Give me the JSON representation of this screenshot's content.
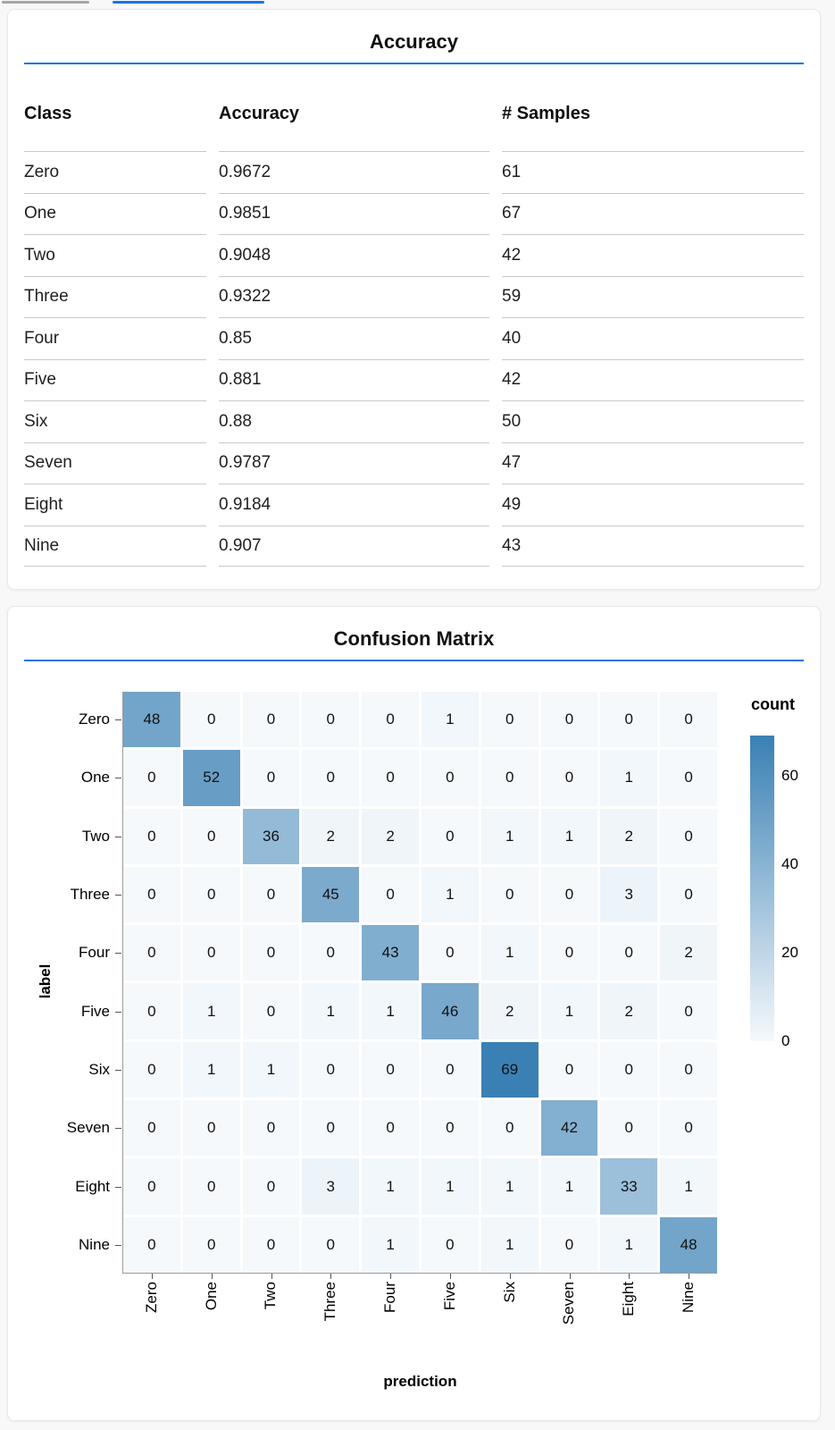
{
  "colors": {
    "accent_blue": "#1a73e8",
    "axis_gray": "#9a9a9a",
    "table_line": "#c9c9c9",
    "heat_low": "#f5f9fc",
    "heat_high": "#3a80b4"
  },
  "chart_data": [
    {
      "type": "table",
      "title": "Accuracy",
      "columns": [
        "Class",
        "Accuracy",
        "# Samples"
      ],
      "rows": [
        [
          "Zero",
          "0.9672",
          "61"
        ],
        [
          "One",
          "0.9851",
          "67"
        ],
        [
          "Two",
          "0.9048",
          "42"
        ],
        [
          "Three",
          "0.9322",
          "59"
        ],
        [
          "Four",
          "0.85",
          "40"
        ],
        [
          "Five",
          "0.881",
          "42"
        ],
        [
          "Six",
          "0.88",
          "50"
        ],
        [
          "Seven",
          "0.9787",
          "47"
        ],
        [
          "Eight",
          "0.9184",
          "49"
        ],
        [
          "Nine",
          "0.907",
          "43"
        ]
      ]
    },
    {
      "type": "heatmap",
      "title": "Confusion Matrix",
      "xlabel": "prediction",
      "ylabel": "label",
      "x": [
        "Zero",
        "One",
        "Two",
        "Three",
        "Four",
        "Five",
        "Six",
        "Seven",
        "Eight",
        "Nine"
      ],
      "y": [
        "Zero",
        "One",
        "Two",
        "Three",
        "Four",
        "Five",
        "Six",
        "Seven",
        "Eight",
        "Nine"
      ],
      "values": [
        [
          48,
          0,
          0,
          0,
          0,
          1,
          0,
          0,
          0,
          0
        ],
        [
          0,
          52,
          0,
          0,
          0,
          0,
          0,
          0,
          1,
          0
        ],
        [
          0,
          0,
          36,
          2,
          2,
          0,
          1,
          1,
          2,
          0
        ],
        [
          0,
          0,
          0,
          45,
          0,
          1,
          0,
          0,
          3,
          0
        ],
        [
          0,
          0,
          0,
          0,
          43,
          0,
          1,
          0,
          0,
          2
        ],
        [
          0,
          1,
          0,
          1,
          1,
          46,
          2,
          1,
          2,
          0
        ],
        [
          0,
          1,
          1,
          0,
          0,
          0,
          69,
          0,
          0,
          0
        ],
        [
          0,
          0,
          0,
          0,
          0,
          0,
          0,
          42,
          0,
          0
        ],
        [
          0,
          0,
          0,
          3,
          1,
          1,
          1,
          1,
          33,
          1
        ],
        [
          0,
          0,
          0,
          0,
          1,
          0,
          1,
          0,
          1,
          48
        ]
      ],
      "legend_title": "count",
      "legend_ticks": [
        60,
        40,
        20,
        0
      ],
      "color_domain": [
        0,
        69
      ],
      "color_range": [
        "#f5f9fc",
        "#3a80b4"
      ],
      "grid": false,
      "legend_position": "right"
    }
  ]
}
